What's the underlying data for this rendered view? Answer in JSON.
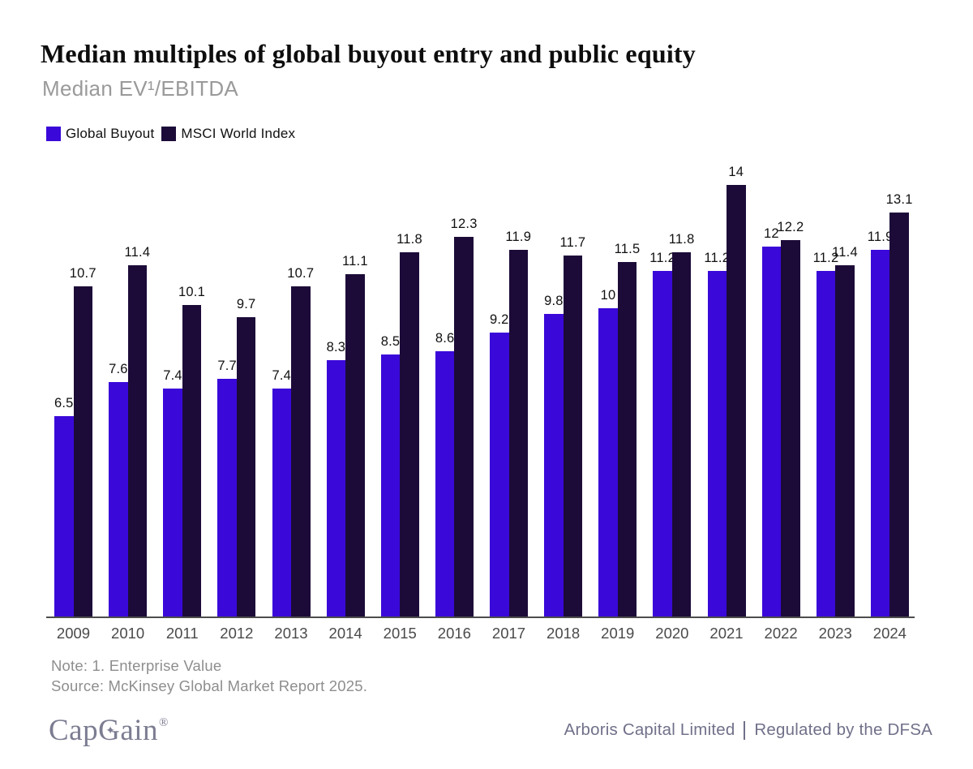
{
  "header": {
    "title": "Median multiples of global buyout entry and public equity",
    "subtitle": "Median EV¹/EBITDA"
  },
  "chart_data": {
    "type": "bar",
    "title": "Median multiples of global buyout entry and public equity",
    "subtitle": "Median EV¹/EBITDA",
    "categories": [
      "2009",
      "2010",
      "2011",
      "2012",
      "2013",
      "2014",
      "2015",
      "2016",
      "2017",
      "2018",
      "2019",
      "2020",
      "2021",
      "2022",
      "2023",
      "2024"
    ],
    "series": [
      {
        "name": "Global Buyout",
        "color": "#3A08D9",
        "values": [
          6.5,
          7.6,
          7.4,
          7.7,
          7.4,
          8.3,
          8.5,
          8.6,
          9.2,
          9.8,
          10,
          11.2,
          11.2,
          12,
          11.2,
          11.9
        ]
      },
      {
        "name": "MSCI World Index",
        "color": "#1C0B38",
        "values": [
          10.7,
          11.4,
          10.1,
          9.7,
          10.7,
          11.1,
          11.8,
          12.3,
          11.9,
          11.7,
          11.5,
          11.8,
          14,
          12.2,
          11.4,
          13.1
        ]
      }
    ],
    "ylim": [
      0,
      14.2
    ],
    "grid": false,
    "value_labels": true,
    "legend_position": "top-left",
    "axis_line_color": "#4d4d4d"
  },
  "notes": {
    "note": "Note: 1. Enterprise Value",
    "source": "Source: McKinsey Global Market Report 2025."
  },
  "footer": {
    "logo": {
      "part1": "Cap",
      "part2": "G",
      "part3": "ain",
      "reg": "®",
      "star": "✦"
    },
    "company": "Arboris Capital Limited",
    "regulated": "Regulated by the DFSA"
  }
}
